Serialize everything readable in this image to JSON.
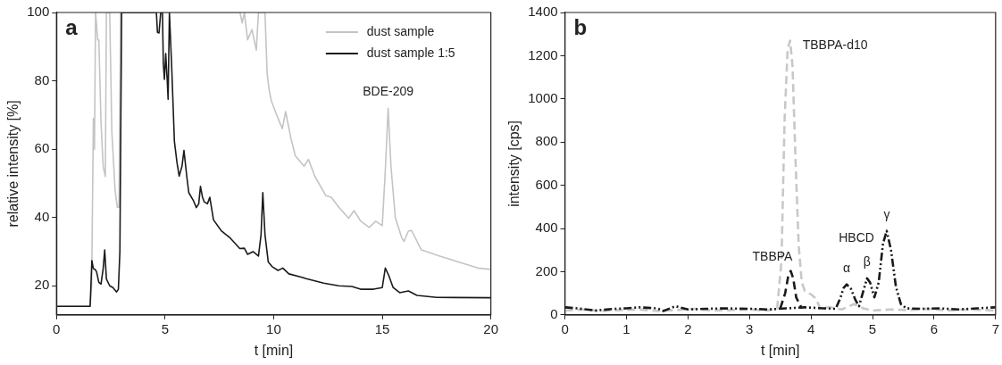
{
  "chart_data": [
    {
      "type": "line",
      "title": "a",
      "xlabel": "t [min]",
      "ylabel": "relative intensity [%]",
      "xlim": [
        0,
        20
      ],
      "xticks": [
        0,
        5,
        10,
        15,
        20
      ],
      "ylim": [
        11.5,
        100
      ],
      "yticks": [
        20,
        40,
        60,
        80,
        100
      ],
      "grid": false,
      "legend": "top right",
      "line_style": "solid",
      "marker": "none",
      "annotations": [
        {
          "text": "BDE-209",
          "x": 15.27,
          "y": 72
        }
      ],
      "series": [
        {
          "name": "dust sample",
          "color": "#c4c4c4",
          "x": [
            0,
            1.55,
            1.62,
            1.7,
            1.75,
            1.8,
            1.9,
            1.95,
            2.05,
            2.15,
            2.25,
            2.3,
            2.4,
            2.45,
            2.55,
            2.7,
            2.8,
            2.88,
            2.95,
            8.45,
            8.55,
            8.65,
            8.8,
            9.0,
            9.2,
            9.3,
            9.6,
            9.7,
            9.8,
            9.9,
            10.2,
            10.4,
            10.55,
            10.8,
            11.0,
            11.4,
            11.6,
            11.9,
            12.4,
            12.65,
            13.0,
            13.45,
            13.7,
            14.0,
            14.4,
            14.7,
            15.0,
            15.15,
            15.27,
            15.4,
            15.6,
            15.9,
            16.0,
            16.2,
            16.35,
            16.8,
            17.65,
            18.5,
            19.4,
            20
          ],
          "values": [
            14,
            14,
            20,
            69,
            60,
            100,
            92,
            92,
            68,
            55,
            52,
            100,
            100,
            100,
            65,
            48,
            43,
            43,
            100,
            100,
            97,
            100,
            92,
            95,
            89,
            100,
            100,
            82,
            77,
            74,
            69,
            66,
            71,
            63,
            58,
            55,
            57,
            52,
            46.4,
            45.9,
            43,
            39.8,
            42,
            39,
            37.1,
            38.9,
            37.6,
            55,
            72,
            55,
            40,
            34,
            33,
            36,
            36.2,
            30.5,
            28.7,
            27,
            25.2,
            24.8
          ]
        },
        {
          "name": "dust sample 1:5",
          "color": "#1a1a1a",
          "x": [
            0,
            1.55,
            1.63,
            1.7,
            1.78,
            1.85,
            1.95,
            2.05,
            2.15,
            2.22,
            2.3,
            2.45,
            2.6,
            2.77,
            2.85,
            2.92,
            3.0,
            4.6,
            4.65,
            4.72,
            4.8,
            4.88,
            4.92,
            4.97,
            5.03,
            5.1,
            5.14,
            5.2,
            5.3,
            5.43,
            5.55,
            5.65,
            5.78,
            5.87,
            6.0,
            6.09,
            6.3,
            6.44,
            6.55,
            6.63,
            6.72,
            6.8,
            6.95,
            7.06,
            7.23,
            7.59,
            8.0,
            8.44,
            8.65,
            8.8,
            9.05,
            9.3,
            9.42,
            9.5,
            9.6,
            9.75,
            9.93,
            10.2,
            10.42,
            10.7,
            11.3,
            11.5,
            12.3,
            13.0,
            13.6,
            14.0,
            14.6,
            15.0,
            15.14,
            15.3,
            15.5,
            15.8,
            16.2,
            16.6,
            17.5,
            20
          ],
          "values": [
            14,
            14,
            27.4,
            25,
            24.8,
            24,
            21,
            20.5,
            25,
            30.5,
            22,
            20,
            19.5,
            18.2,
            19,
            30,
            100,
            100,
            94.2,
            94,
            100,
            100,
            85,
            80.4,
            88,
            80,
            74.6,
            100,
            85,
            62.3,
            56,
            52.1,
            55,
            59.6,
            52,
            47.3,
            45,
            42.9,
            44,
            49.1,
            46,
            44.6,
            44,
            45.9,
            39.3,
            36.1,
            34,
            30.9,
            31,
            29.2,
            30,
            28.7,
            35,
            47.3,
            35,
            27,
            25.6,
            24.5,
            25.2,
            23.5,
            22.5,
            22.1,
            20.8,
            20,
            19.8,
            19,
            19,
            19.5,
            25.2,
            23,
            19.5,
            18,
            18.5,
            17.2,
            16.6,
            16.5
          ]
        }
      ]
    },
    {
      "type": "line",
      "title": "b",
      "xlabel": "t [min]",
      "ylabel": "intensity [cps]",
      "xlim": [
        0,
        7
      ],
      "xticks": [
        0,
        1,
        2,
        3,
        4,
        5,
        6,
        7
      ],
      "ylim": [
        0,
        1400
      ],
      "yticks": [
        0,
        200,
        400,
        600,
        800,
        1000,
        1200,
        1400
      ],
      "grid": false,
      "legend": false,
      "marker": "none",
      "annotations": [
        {
          "text": "α",
          "x": 4.58,
          "y": 141
        },
        {
          "text": "β",
          "x": 4.91,
          "y": 169
        },
        {
          "text": "γ",
          "x": 5.23,
          "y": 389
        }
      ],
      "series": [
        {
          "name": "TBBPA-d10",
          "color": "#c8c8c8",
          "line_style": "dashed",
          "x": [
            0,
            0.3,
            0.6,
            0.9,
            1.2,
            1.5,
            1.8,
            2.1,
            2.4,
            2.7,
            3.0,
            3.3,
            3.45,
            3.52,
            3.57,
            3.62,
            3.66,
            3.7,
            3.75,
            3.8,
            3.85,
            3.9,
            4.0,
            4.08,
            4.15,
            4.3,
            4.5,
            4.7,
            4.85,
            5.0,
            5.3,
            5.6,
            5.9,
            6.2,
            6.5,
            6.8,
            7
          ],
          "values": [
            20,
            25,
            18,
            22,
            25,
            18,
            22,
            28,
            20,
            22,
            25,
            20,
            30,
            250,
            900,
            1230,
            1270,
            1150,
            700,
            320,
            150,
            110,
            95,
            75,
            30,
            35,
            25,
            50,
            30,
            20,
            25,
            22,
            28,
            20,
            25,
            22,
            20
          ]
        },
        {
          "name": "TBBPA",
          "color": "#1a1a1a",
          "line_style": "dashed",
          "x": [
            3.5,
            3.58,
            3.63,
            3.67,
            3.71,
            3.76,
            3.85
          ],
          "values": [
            30,
            100,
            180,
            203,
            170,
            80,
            30
          ]
        },
        {
          "name": "HBCD",
          "color": "#1a1a1a",
          "line_style": "dashdot",
          "x": [
            0,
            0.2,
            0.5,
            0.8,
            1.0,
            1.2,
            1.5,
            1.6,
            1.8,
            2.0,
            2.3,
            2.6,
            3.0,
            3.3,
            3.6,
            3.9,
            4.2,
            4.4,
            4.48,
            4.53,
            4.58,
            4.65,
            4.72,
            4.78,
            4.85,
            4.91,
            4.96,
            5.03,
            5.1,
            5.17,
            5.23,
            5.3,
            5.38,
            5.46,
            5.55,
            5.8,
            6.1,
            6.4,
            6.7,
            7
          ],
          "values": [
            35,
            30,
            20,
            28,
            30,
            35,
            30,
            18,
            40,
            25,
            28,
            30,
            28,
            25,
            30,
            35,
            30,
            28,
            80,
            125,
            141,
            120,
            70,
            40,
            110,
            169,
            150,
            81,
            150,
            330,
            389,
            300,
            130,
            50,
            30,
            28,
            30,
            25,
            30,
            35
          ]
        }
      ]
    }
  ]
}
